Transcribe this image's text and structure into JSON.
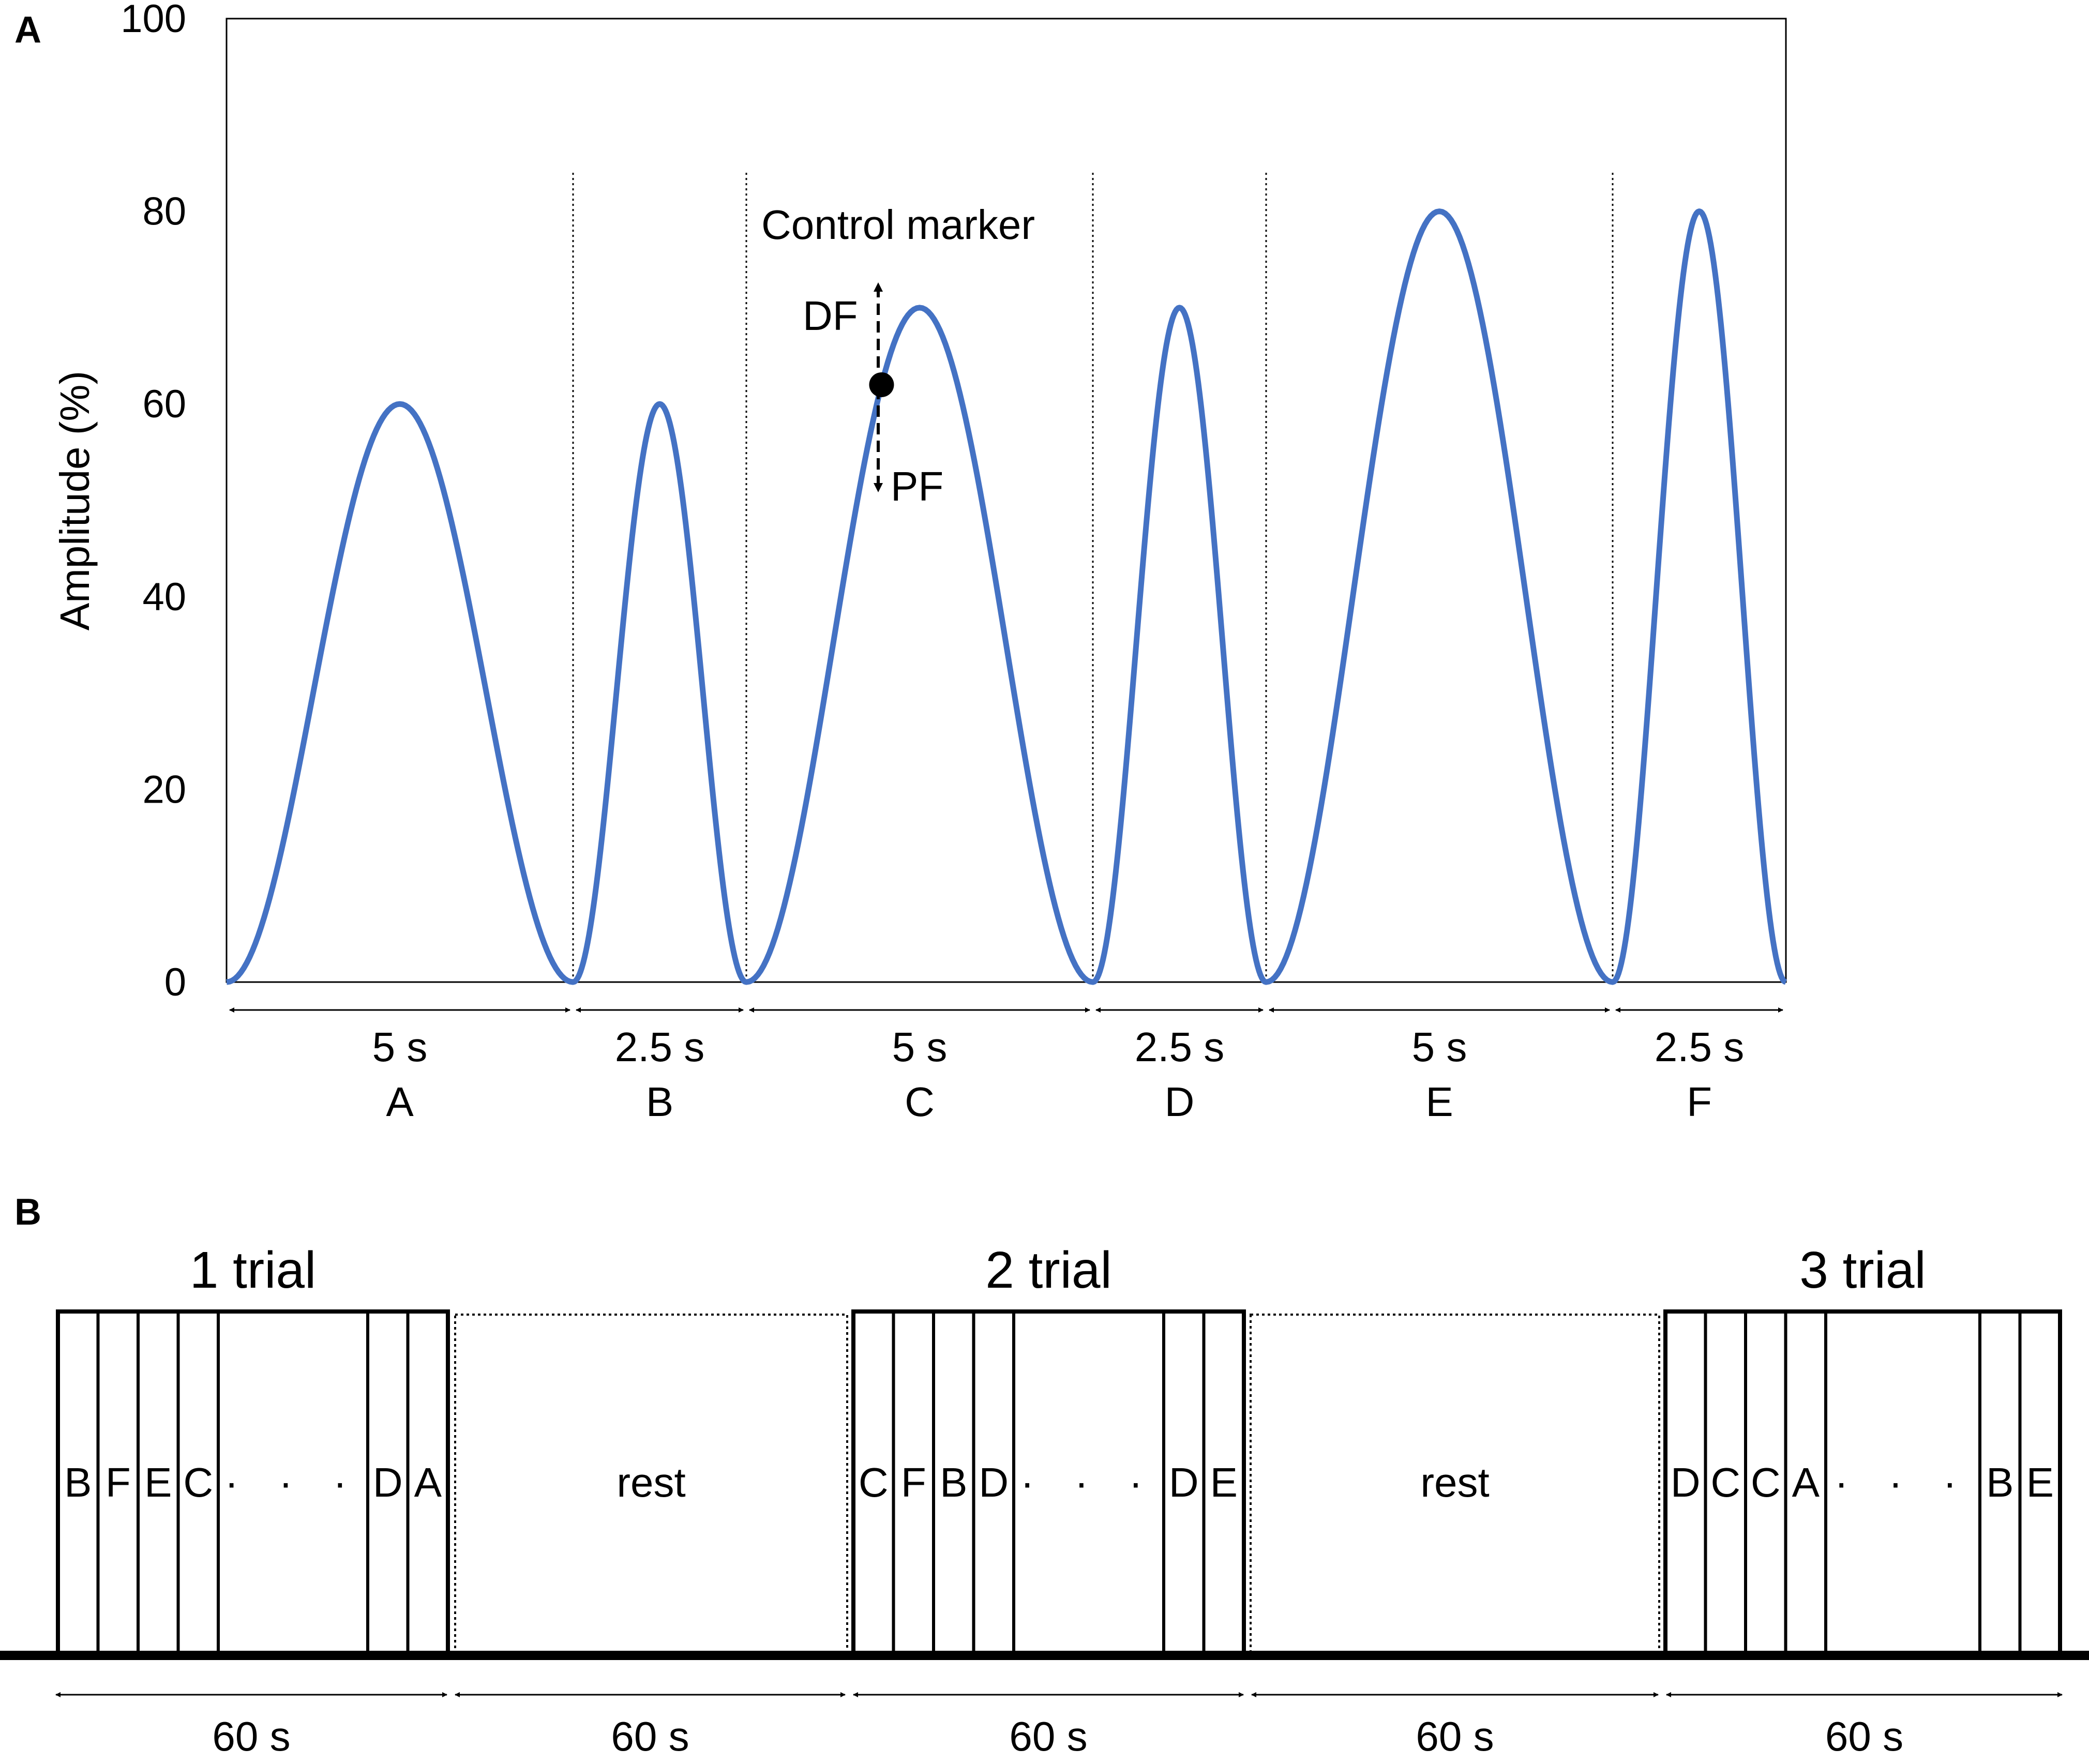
{
  "panel_a": {
    "label": "A",
    "annotations": {
      "control_marker": "Control marker",
      "df": "DF",
      "pf": "PF"
    }
  },
  "panel_b": {
    "label": "B",
    "blocks": [
      {
        "kind": "trial",
        "title": "1 trial",
        "cells": [
          "B",
          "F",
          "E",
          "C",
          "D",
          "A"
        ],
        "duration": "60 s"
      },
      {
        "kind": "rest",
        "text": "rest",
        "duration": "60 s"
      },
      {
        "kind": "trial",
        "title": "2 trial",
        "cells": [
          "C",
          "F",
          "B",
          "D",
          "D",
          "E"
        ],
        "duration": "60 s"
      },
      {
        "kind": "rest",
        "text": "rest",
        "duration": "60 s"
      },
      {
        "kind": "trial",
        "title": "3 trial",
        "cells": [
          "D",
          "C",
          "C",
          "A",
          "B",
          "E"
        ],
        "duration": "60 s"
      }
    ],
    "ellipsis": "· · ·"
  },
  "colors": {
    "curve": "#4472C4",
    "text": "#000000"
  },
  "chart_data": {
    "type": "line",
    "ylabel": "Amplitude (%)",
    "ylim": [
      0,
      100
    ],
    "yticks": [
      0,
      20,
      40,
      60,
      80,
      100
    ],
    "xlabel": "",
    "segments": [
      {
        "label": "A",
        "duration_label": "5 s",
        "duration_s": 5,
        "peak": 60
      },
      {
        "label": "B",
        "duration_label": "2.5 s",
        "duration_s": 2.5,
        "peak": 60
      },
      {
        "label": "C",
        "duration_label": "5 s",
        "duration_s": 5,
        "peak": 70
      },
      {
        "label": "D",
        "duration_label": "2.5 s",
        "duration_s": 2.5,
        "peak": 70
      },
      {
        "label": "E",
        "duration_label": "5 s",
        "duration_s": 5,
        "peak": 80
      },
      {
        "label": "F",
        "duration_label": "2.5 s",
        "duration_s": 2.5,
        "peak": 80
      }
    ],
    "control_marker": {
      "segment": "C",
      "amplitude": 62
    }
  }
}
